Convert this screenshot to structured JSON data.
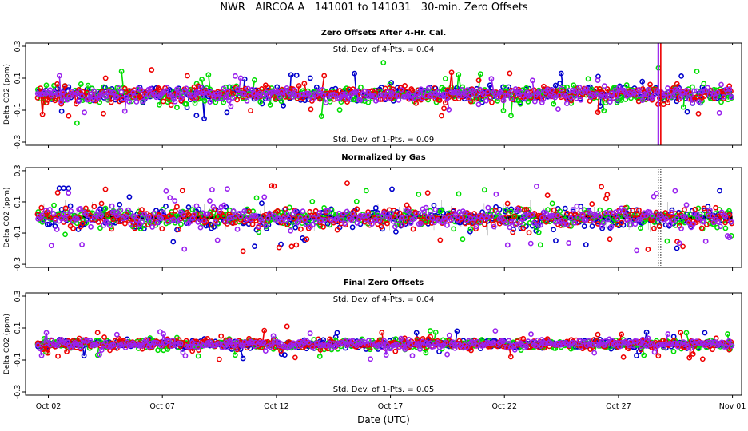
{
  "title": "NWR   AIRCOA A   141001 to 141031   30-min. Zero Offsets",
  "colors": {
    "gas1": "#0000cc",
    "gas2": "#00dd00",
    "gas3": "#ee0000",
    "gas4": "#9922ee",
    "norm": "#000000"
  },
  "chart_data": [
    {
      "type": "scatter",
      "title": "Zero Offsets After 4-Hr. Cal.",
      "ylabel": "Delta CO2 (ppm)",
      "ylim": [
        -0.32,
        0.32
      ],
      "yticks": [
        "0.3",
        "0.1",
        "-0.1",
        "-0.3"
      ],
      "annotation_top": "Std. Dev. of 4-Pts. = 0.04",
      "annotation_bottom": "Std. Dev. of 1-Pts. = 0.09",
      "xlim": [
        1.0,
        32.4
      ],
      "x_start_day": 1.55,
      "x_end_day": 31.95,
      "n_points": 360,
      "series": [
        {
          "name": "gas1",
          "sd": 0.06
        },
        {
          "name": "gas2",
          "sd": 0.07
        },
        {
          "name": "gas3",
          "sd": 0.065
        },
        {
          "name": "gas4",
          "sd": 0.055
        }
      ],
      "spike_day": 28.75
    },
    {
      "type": "scatter",
      "title": "Normalized by Gas",
      "ylabel": "Delta CO2 (ppm)",
      "ylim": [
        -0.32,
        0.32
      ],
      "yticks": [
        "0.3",
        "0.1",
        "-0.1",
        "-0.3"
      ],
      "xlim": [
        1.0,
        32.4
      ],
      "x_start_day": 1.55,
      "x_end_day": 31.95,
      "n_points": 360,
      "normalized_level": 0.0,
      "series": [
        {
          "name": "gas1",
          "sd": 0.09
        },
        {
          "name": "gas2",
          "sd": 0.08
        },
        {
          "name": "gas3",
          "sd": 0.09
        },
        {
          "name": "gas4",
          "sd": 0.08
        }
      ],
      "spike_day": 28.75
    },
    {
      "type": "scatter",
      "title": "Final Zero Offsets",
      "ylabel": "Delta CO2 (ppm)",
      "ylim": [
        -0.32,
        0.32
      ],
      "yticks": [
        "0.3",
        "0.1",
        "-0.1",
        "-0.3"
      ],
      "annotation_top": "Std. Dev. of 4-Pts. = 0.04",
      "annotation_bottom": "Std. Dev. of 1-Pts. = 0.05",
      "xlim": [
        1.0,
        32.4
      ],
      "x_start_day": 1.55,
      "x_end_day": 31.95,
      "n_points": 360,
      "series": [
        {
          "name": "gas1",
          "sd": 0.035
        },
        {
          "name": "gas2",
          "sd": 0.04
        },
        {
          "name": "gas3",
          "sd": 0.045
        },
        {
          "name": "gas4",
          "sd": 0.035
        }
      ]
    }
  ],
  "x_axis": {
    "label": "Date (UTC)",
    "ticks": [
      {
        "day": 2,
        "label": "Oct 02"
      },
      {
        "day": 7,
        "label": "Oct 07"
      },
      {
        "day": 12,
        "label": "Oct 12"
      },
      {
        "day": 17,
        "label": "Oct 17"
      },
      {
        "day": 22,
        "label": "Oct 22"
      },
      {
        "day": 27,
        "label": "Oct 27"
      },
      {
        "day": 32,
        "label": "Nov 01"
      }
    ]
  }
}
